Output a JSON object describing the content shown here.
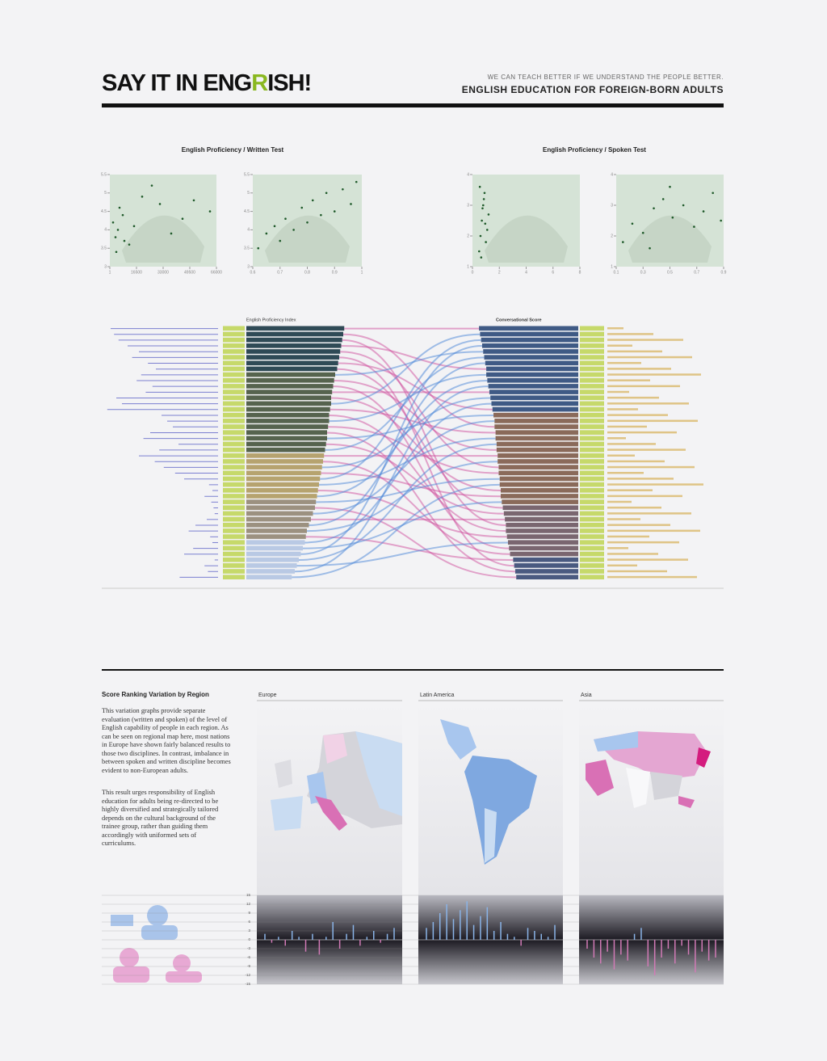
{
  "header": {
    "title_parts": [
      "SAY IT IN ENG",
      "R",
      "ISH!"
    ],
    "tagline": "WE CAN TEACH BETTER IF WE UNDERSTAND THE PEOPLE BETTER.",
    "subtitle": "ENGLISH EDUCATION FOR FOREIGN-BORN ADULTS"
  },
  "section": {
    "title": "Score Ranking Variation by Region",
    "paragraphs": [
      "This variation graphs provide separate evaluation (written and spoken) of the level of English capability of people in each region. As can be seen on regional map here, most nations in Europe have shown fairly balanced results to those two disciplines. In contrast, imbalance in between spoken and written discipline becomes evident to non-European adults.",
      "This result urges responsibility of English education for adults being re-directed to be highly diversified and strategically tailored depends on the cultural background of the trainee group, rather than guiding them accordingly with uniformed sets of curriculums."
    ]
  },
  "chart_data": [
    {
      "type": "scatter",
      "title": "English Proficiency / Written Test",
      "color": "#1f5a2a",
      "x": [
        2000,
        3500,
        5000,
        8000,
        12000,
        15000,
        20000,
        26000,
        31000,
        38000,
        45000,
        52000,
        62000,
        4000,
        6000,
        9000
      ],
      "y": [
        4.2,
        3.8,
        4.0,
        4.4,
        3.6,
        4.1,
        4.9,
        5.2,
        4.7,
        3.9,
        4.3,
        4.8,
        4.5,
        3.4,
        4.6,
        3.7
      ],
      "xlim": [
        1,
        66000
      ],
      "xticks": [
        1,
        16500,
        33000,
        49500,
        66000
      ],
      "ylim": [
        3,
        5.5
      ],
      "yticks": [
        3,
        3.5,
        4,
        4.5,
        5,
        5.5
      ]
    },
    {
      "type": "scatter",
      "color": "#1f5a2a",
      "x": [
        0.62,
        0.65,
        0.68,
        0.7,
        0.72,
        0.75,
        0.78,
        0.8,
        0.82,
        0.85,
        0.87,
        0.9,
        0.93,
        0.96,
        0.98
      ],
      "y": [
        3.5,
        3.9,
        4.1,
        3.7,
        4.3,
        4.0,
        4.6,
        4.2,
        4.8,
        4.4,
        5.0,
        4.5,
        5.1,
        4.7,
        5.3
      ],
      "xlim": [
        0.6,
        1
      ],
      "xticks": [
        0.6,
        0.7,
        0.8,
        0.9,
        1
      ],
      "ylim": [
        3,
        5.5
      ],
      "yticks": [
        3,
        3.5,
        4,
        4.5,
        5,
        5.5
      ]
    },
    {
      "type": "scatter",
      "title": "English Proficiency / Spoken Test",
      "color": "#1f5a2a",
      "x": [
        0.5,
        0.6,
        0.7,
        0.8,
        0.9,
        1.0,
        1.1,
        1.2,
        0.55,
        0.65,
        0.75,
        0.85,
        0.95
      ],
      "y": [
        1.5,
        2.0,
        2.5,
        3.0,
        3.4,
        1.8,
        2.2,
        2.7,
        3.6,
        1.3,
        2.9,
        3.2,
        2.4
      ],
      "xlim": [
        0,
        8
      ],
      "xticks": [
        0,
        2,
        4,
        6,
        8
      ],
      "ylim": [
        1,
        4
      ],
      "yticks": [
        1,
        2,
        3,
        4
      ]
    },
    {
      "type": "scatter",
      "color": "#1f5a2a",
      "x": [
        0.15,
        0.22,
        0.3,
        0.38,
        0.45,
        0.52,
        0.6,
        0.68,
        0.75,
        0.82,
        0.88,
        0.35,
        0.5
      ],
      "y": [
        1.8,
        2.4,
        2.1,
        2.9,
        3.2,
        2.6,
        3.0,
        2.3,
        2.8,
        3.4,
        2.5,
        1.6,
        3.6
      ],
      "xlim": [
        0.1,
        0.9
      ],
      "xticks": [
        0.1,
        0.3,
        0.5,
        0.7,
        0.9
      ],
      "ylim": [
        1,
        4
      ],
      "yticks": [
        1,
        2,
        3,
        4
      ]
    },
    {
      "type": "rank-flow",
      "side": {
        "color": "#7b7fd0",
        "values": [
          95,
          92,
          88,
          80,
          70,
          76,
          62,
          55,
          68,
          72,
          58,
          64,
          90,
          85,
          98,
          50,
          45,
          40,
          60,
          66,
          35,
          52,
          70,
          56,
          48,
          38,
          30,
          8,
          5,
          12,
          6,
          4,
          3,
          10,
          20,
          26,
          7,
          5,
          22,
          30,
          3,
          12,
          9,
          34
        ]
      },
      "written": {
        "title": "English Proficiency Index",
        "groups": [
          {
            "color": "#2f4a56",
            "values": [
              97,
              96,
              95,
              94,
              93,
              92,
              91,
              90
            ]
          },
          {
            "color": "#56634e",
            "values": [
              88,
              87,
              86,
              85,
              84,
              84,
              83,
              82,
              82,
              81,
              80,
              80,
              79,
              78
            ]
          },
          {
            "color": "#b6a36f",
            "values": [
              77,
              76,
              75,
              74,
              73,
              72,
              71,
              70
            ]
          },
          {
            "color": "#9c9180",
            "values": [
              69,
              68,
              66,
              64,
              62,
              60,
              59
            ]
          },
          {
            "color": "#b9c9e4",
            "values": [
              58,
              56,
              54,
              52,
              50,
              48,
              45
            ]
          }
        ]
      },
      "spoken": {
        "title": "Conversational Score",
        "groups": [
          {
            "color": "#3f5a85",
            "values": [
              96,
              95,
              94,
              93,
              92,
              91,
              90,
              89,
              89,
              88,
              87,
              86,
              85,
              84,
              83
            ]
          },
          {
            "color": "#8a6a5a",
            "values": [
              82,
              81,
              81,
              80,
              80,
              79,
              79,
              78,
              78,
              77,
              77,
              76,
              76,
              75,
              75,
              74
            ]
          },
          {
            "color": "#7a6670",
            "values": [
              73,
              72,
              71,
              70,
              70,
              69,
              68,
              67,
              66
            ]
          },
          {
            "color": "#4a5a80",
            "values": [
              63,
              62,
              61,
              60
            ]
          }
        ]
      }
    },
    {
      "type": "variation",
      "title": "Europe",
      "positive_color": "#8ab4e8",
      "negative_color": "#d27ab6",
      "values": [
        2,
        -1,
        1,
        -2,
        3,
        1,
        -4,
        2,
        -5,
        1,
        6,
        -3,
        2,
        5,
        -2,
        1,
        3,
        -1,
        2,
        4
      ],
      "ylim": [
        -15,
        15
      ],
      "yticks": [
        15,
        12,
        9,
        6,
        3,
        0,
        -3,
        -6,
        -9,
        -12,
        -15
      ]
    },
    {
      "type": "variation",
      "title": "Latin America",
      "positive_color": "#8ab4e8",
      "negative_color": "#d27ab6",
      "values": [
        4,
        6,
        9,
        12,
        7,
        10,
        13,
        5,
        8,
        11,
        3,
        6,
        2,
        1,
        -2,
        4,
        3,
        2,
        1,
        5
      ],
      "ylim": [
        -15,
        15
      ]
    },
    {
      "type": "variation",
      "title": "Asia",
      "positive_color": "#8ab4e8",
      "negative_color": "#d27ab6",
      "values": [
        -3,
        -6,
        -8,
        -4,
        -10,
        -5,
        -7,
        2,
        4,
        -9,
        -12,
        -6,
        -3,
        -8,
        -2,
        -5,
        -11,
        -4,
        -7,
        -6
      ],
      "ylim": [
        -15,
        15
      ]
    }
  ]
}
